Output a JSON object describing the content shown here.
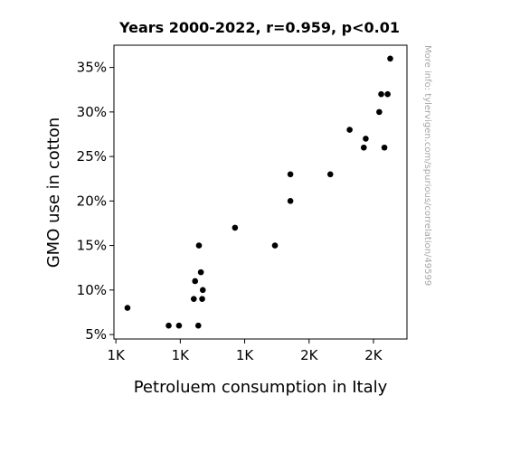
{
  "chart_data": {
    "type": "scatter",
    "title": "Years 2000-2022, r=0.959, p<0.01",
    "xlabel": "Petroluem consumption in Italy",
    "ylabel": "GMO use in cotton",
    "xlim": [
      1200,
      1655
    ],
    "ylim": [
      4.5,
      37.5
    ],
    "x_ticks": [
      {
        "value": 1203,
        "label": "1K"
      },
      {
        "value": 1303,
        "label": "1K"
      },
      {
        "value": 1403,
        "label": "1K"
      },
      {
        "value": 1503,
        "label": "2K"
      },
      {
        "value": 1603,
        "label": "2K"
      }
    ],
    "y_ticks": [
      {
        "value": 5,
        "label": "5%"
      },
      {
        "value": 10,
        "label": "10%"
      },
      {
        "value": 15,
        "label": "15%"
      },
      {
        "value": 20,
        "label": "20%"
      },
      {
        "value": 25,
        "label": "25%"
      },
      {
        "value": 30,
        "label": "30%"
      },
      {
        "value": 35,
        "label": "35%"
      }
    ],
    "grid": false,
    "points": [
      {
        "x": 1221,
        "y": 8
      },
      {
        "x": 1285,
        "y": 6
      },
      {
        "x": 1301,
        "y": 6
      },
      {
        "x": 1324,
        "y": 9
      },
      {
        "x": 1326,
        "y": 11
      },
      {
        "x": 1331,
        "y": 6
      },
      {
        "x": 1332,
        "y": 15
      },
      {
        "x": 1335,
        "y": 12
      },
      {
        "x": 1337,
        "y": 9
      },
      {
        "x": 1338,
        "y": 10
      },
      {
        "x": 1388,
        "y": 17
      },
      {
        "x": 1450,
        "y": 15
      },
      {
        "x": 1474,
        "y": 20
      },
      {
        "x": 1474,
        "y": 23
      },
      {
        "x": 1536,
        "y": 23
      },
      {
        "x": 1566,
        "y": 28
      },
      {
        "x": 1588,
        "y": 26
      },
      {
        "x": 1591,
        "y": 27
      },
      {
        "x": 1612,
        "y": 30
      },
      {
        "x": 1615,
        "y": 32
      },
      {
        "x": 1620,
        "y": 26
      },
      {
        "x": 1625,
        "y": 32
      },
      {
        "x": 1629,
        "y": 36
      }
    ]
  },
  "watermark": "More info: tylervigen.com/spurious/correlation/49599"
}
